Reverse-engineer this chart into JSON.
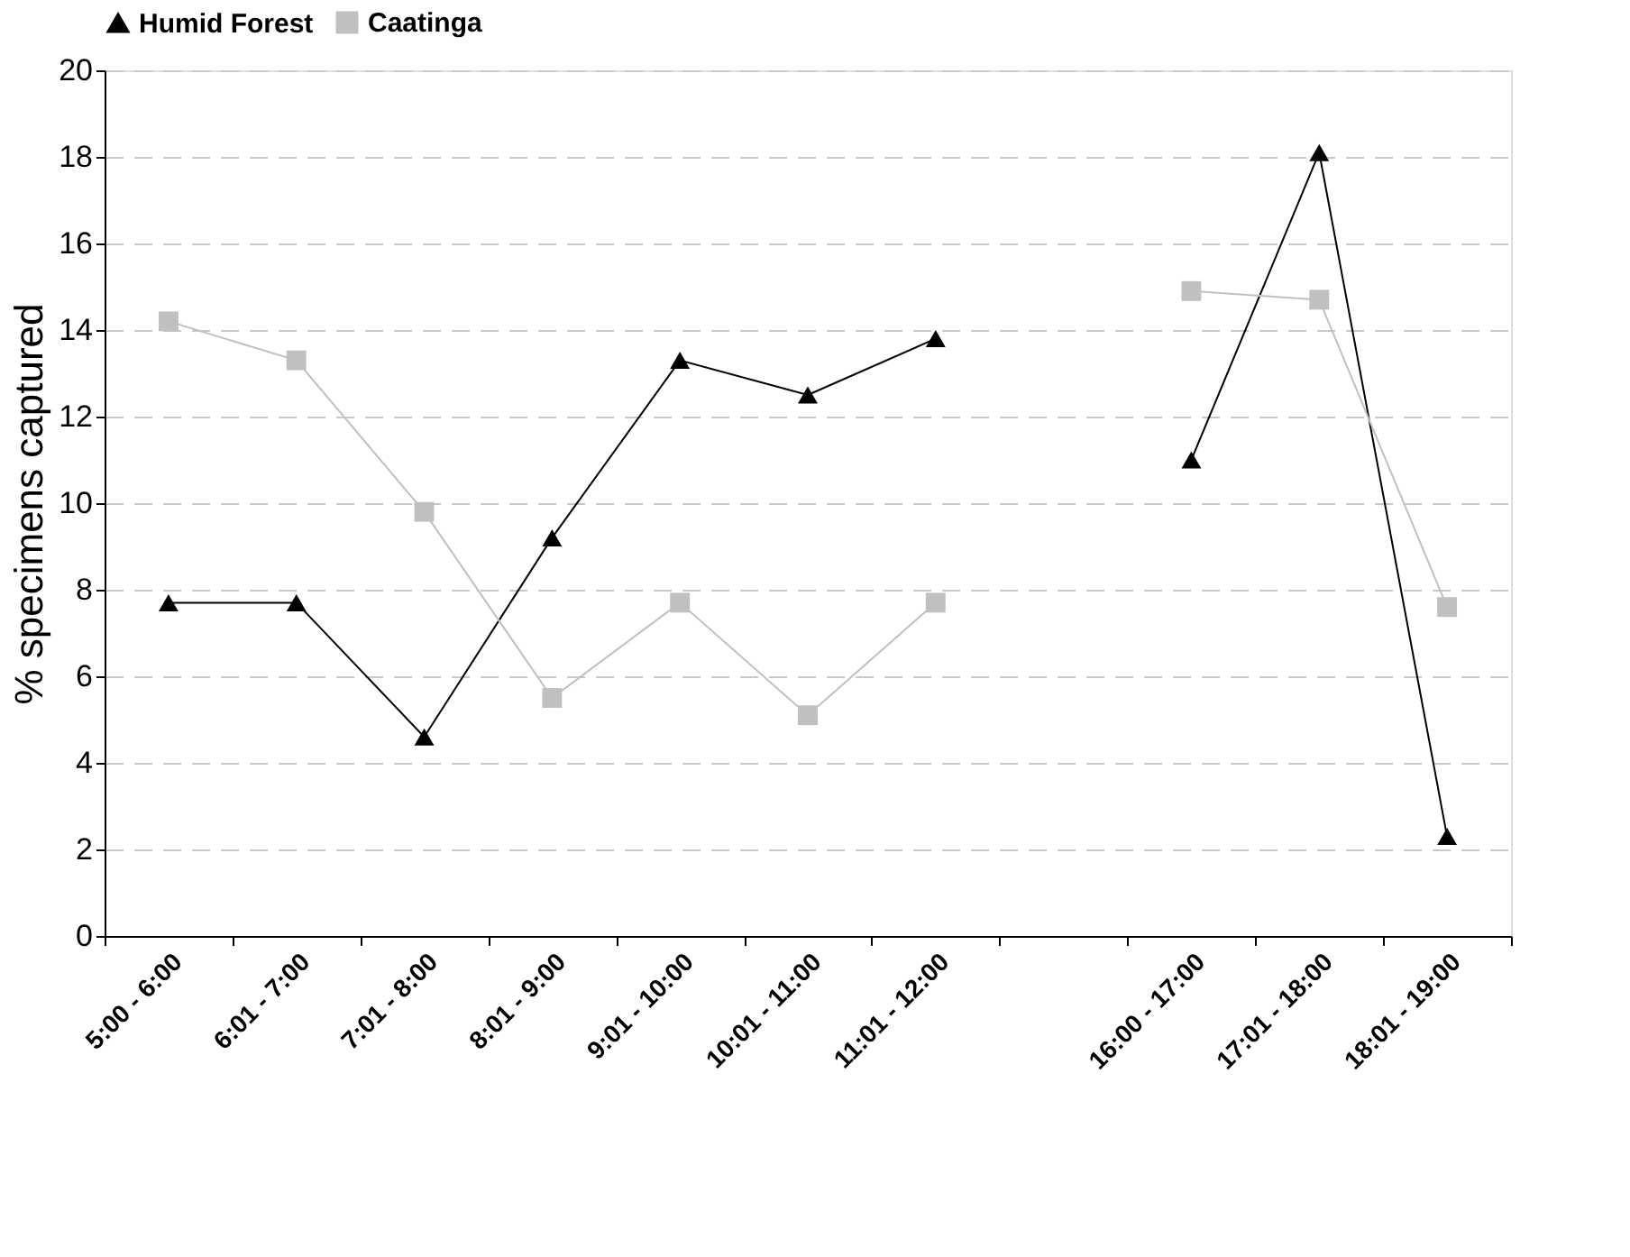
{
  "chart_data": {
    "type": "line",
    "ylabel": "% specimens captured",
    "categories": [
      "5:00 - 6:00",
      "6:01 - 7:00",
      "7:01 - 8:00",
      "8:01 - 9:00",
      "9:01 - 10:00",
      "10:01 - 11:00",
      "11:01 - 12:00",
      null,
      "16:00 - 17:00",
      "17:01 - 18:00",
      "18:01 - 19:00"
    ],
    "series": [
      {
        "name": "Humid Forest",
        "color": "#000000",
        "marker": "triangle",
        "values": [
          7.7,
          7.7,
          4.6,
          9.2,
          13.3,
          12.5,
          13.8,
          null,
          11.0,
          18.1,
          2.3
        ]
      },
      {
        "name": "Caatinga",
        "color": "#c0c0c0",
        "marker": "square",
        "values": [
          14.2,
          13.3,
          9.8,
          5.5,
          7.7,
          5.1,
          7.7,
          null,
          14.9,
          14.7,
          7.6
        ]
      }
    ],
    "ylim": [
      0,
      20
    ],
    "yticks": [
      0,
      2,
      4,
      6,
      8,
      10,
      12,
      14,
      16,
      18,
      20
    ],
    "grid": "y",
    "legend": "top",
    "line_style": "solid"
  }
}
